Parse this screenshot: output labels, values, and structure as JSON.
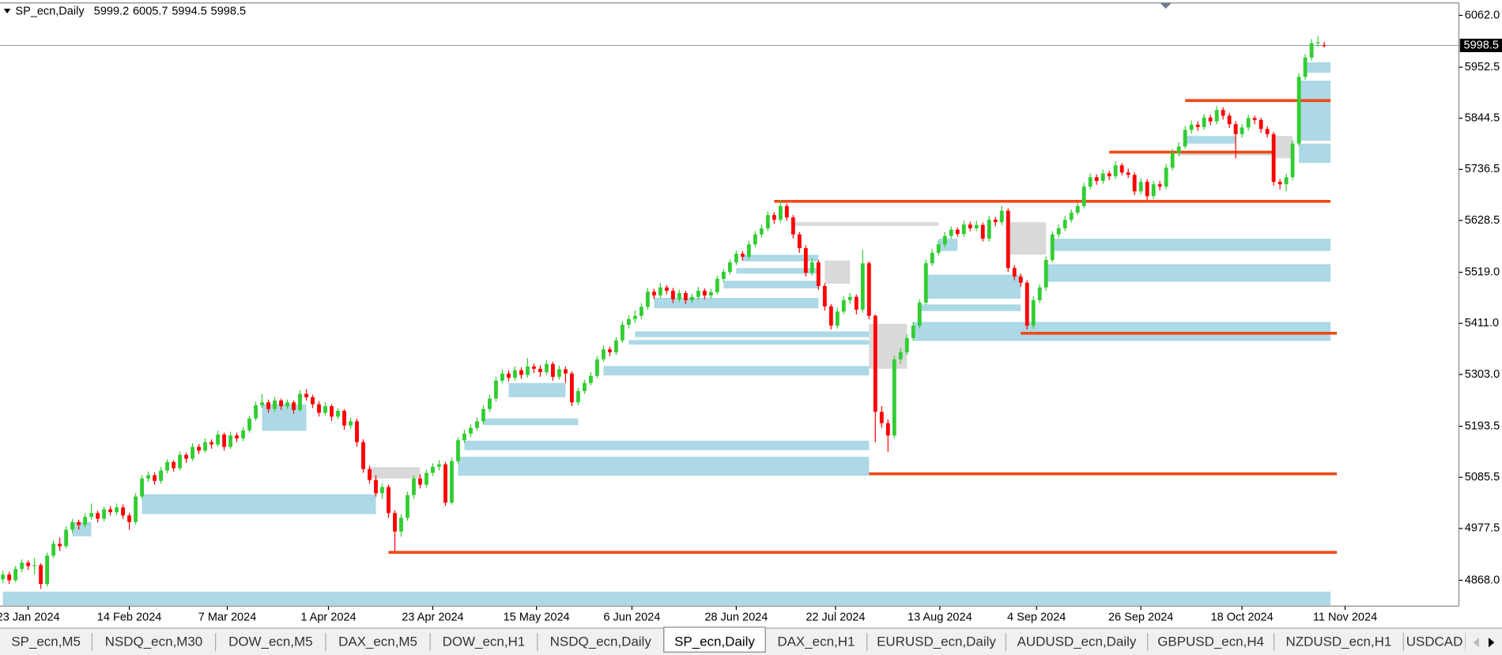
{
  "chart_data": {
    "type": "candlestick",
    "title": "SP_ecn,Daily",
    "up_color": "#32cd32",
    "down_color": "#ff0000",
    "zone_color": "#add8e6",
    "gap_color": "#d9d9d9",
    "level_color": "#f04a16",
    "ylim": [
      4813.4,
      6088.3
    ],
    "yticks": [
      {
        "value": 6062,
        "label": "6062.0"
      },
      5952.5,
      5844.5,
      5736.5,
      5628.5,
      {
        "value": 5519,
        "label": "5519.0"
      },
      {
        "value": 5411,
        "label": "5411.0"
      },
      {
        "value": 5303,
        "label": "5303.0"
      },
      5193.5,
      5085.5,
      4977.5,
      {
        "value": 4868,
        "label": "4868.0"
      }
    ],
    "xticks": [
      {
        "value": 4,
        "label": "23 Jan 2024"
      },
      {
        "value": 20,
        "label": "14 Feb 2024"
      },
      {
        "value": 35.5,
        "label": "7 Mar 2024"
      },
      {
        "value": 51.5,
        "label": "1 Apr 2024"
      },
      {
        "value": 68,
        "label": "23 Apr 2024"
      },
      {
        "value": 84.4,
        "label": "15 May 2024"
      },
      {
        "value": 99.5,
        "label": "6 Jun 2024"
      },
      {
        "value": 116,
        "label": "28 Jun 2024"
      },
      {
        "value": 131.7,
        "label": "22 Jul 2024"
      },
      {
        "value": 148.2,
        "label": "13 Aug 2024"
      },
      {
        "value": 163.5,
        "label": "4 Sep 2024"
      },
      {
        "value": 180,
        "label": "26 Sep 2024"
      },
      {
        "value": 196,
        "label": "18 Oct 2024"
      },
      {
        "value": 212.3,
        "label": "11 Nov 2024"
      }
    ],
    "candles": [
      [
        4870,
        4888,
        4862,
        4880
      ],
      [
        4880,
        4886,
        4860,
        4868
      ],
      [
        4868,
        4898,
        4864,
        4892
      ],
      [
        4892,
        4912,
        4885,
        4905
      ],
      [
        4905,
        4910,
        4890,
        4898
      ],
      [
        4898,
        4915,
        4880,
        4900
      ],
      [
        4900,
        4904,
        4850,
        4860
      ],
      [
        4860,
        4926,
        4855,
        4920
      ],
      [
        4920,
        4952,
        4915,
        4945
      ],
      [
        4945,
        4958,
        4930,
        4940
      ],
      [
        4940,
        4982,
        4936,
        4975
      ],
      [
        4975,
        4998,
        4968,
        4991
      ],
      [
        4991,
        4996,
        4975,
        4985
      ],
      [
        4985,
        5010,
        4980,
        5002
      ],
      [
        5002,
        5030,
        4996,
        5010
      ],
      [
        5010,
        5015,
        4990,
        4998
      ],
      [
        4998,
        5024,
        4992,
        5018
      ],
      [
        5018,
        5025,
        5005,
        5012
      ],
      [
        5012,
        5030,
        5006,
        5022
      ],
      [
        5022,
        5028,
        4998,
        5005
      ],
      [
        5005,
        5010,
        4975,
        4991
      ],
      [
        4991,
        5052,
        4986,
        5045
      ],
      [
        5045,
        5090,
        5040,
        5083
      ],
      [
        5083,
        5098,
        5076,
        5090
      ],
      [
        5090,
        5096,
        5070,
        5078
      ],
      [
        5078,
        5108,
        5072,
        5100
      ],
      [
        5100,
        5124,
        5094,
        5118
      ],
      [
        5118,
        5122,
        5098,
        5105
      ],
      [
        5105,
        5140,
        5100,
        5133
      ],
      [
        5133,
        5138,
        5116,
        5125
      ],
      [
        5125,
        5158,
        5120,
        5150
      ],
      [
        5150,
        5156,
        5135,
        5142
      ],
      [
        5142,
        5168,
        5138,
        5160
      ],
      [
        5160,
        5166,
        5146,
        5155
      ],
      [
        5155,
        5184,
        5150,
        5176
      ],
      [
        5176,
        5180,
        5142,
        5150
      ],
      [
        5150,
        5182,
        5146,
        5174
      ],
      [
        5174,
        5180,
        5160,
        5168
      ],
      [
        5168,
        5192,
        5162,
        5185
      ],
      [
        5185,
        5216,
        5180,
        5210
      ],
      [
        5210,
        5246,
        5205,
        5238
      ],
      [
        5238,
        5262,
        5232,
        5244
      ],
      [
        5244,
        5250,
        5222,
        5230
      ],
      [
        5230,
        5256,
        5224,
        5248
      ],
      [
        5248,
        5252,
        5228,
        5236
      ],
      [
        5236,
        5250,
        5230,
        5244
      ],
      [
        5244,
        5248,
        5220,
        5228
      ],
      [
        5228,
        5270,
        5224,
        5262
      ],
      [
        5262,
        5272,
        5248,
        5255
      ],
      [
        5255,
        5260,
        5232,
        5240
      ],
      [
        5240,
        5246,
        5214,
        5222
      ],
      [
        5222,
        5244,
        5216,
        5236
      ],
      [
        5236,
        5240,
        5205,
        5214
      ],
      [
        5214,
        5232,
        5208,
        5226
      ],
      [
        5226,
        5230,
        5186,
        5195
      ],
      [
        5195,
        5212,
        5188,
        5204
      ],
      [
        5204,
        5210,
        5150,
        5160
      ],
      [
        5160,
        5166,
        5095,
        5103
      ],
      [
        5103,
        5110,
        5072,
        5080
      ],
      [
        5080,
        5090,
        5045,
        5052
      ],
      [
        5052,
        5072,
        5040,
        5065
      ],
      [
        5065,
        5070,
        5000,
        5010
      ],
      [
        5010,
        5016,
        4930,
        4971
      ],
      [
        4971,
        5008,
        4960,
        5000
      ],
      [
        5000,
        5055,
        4994,
        5048
      ],
      [
        5048,
        5090,
        5040,
        5083
      ],
      [
        5083,
        5092,
        5062,
        5070
      ],
      [
        5070,
        5102,
        5064,
        5095
      ],
      [
        5095,
        5115,
        5088,
        5108
      ],
      [
        5108,
        5122,
        5100,
        5113
      ],
      [
        5113,
        5118,
        5025,
        5032
      ],
      [
        5032,
        5128,
        5028,
        5120
      ],
      [
        5120,
        5170,
        5115,
        5164
      ],
      [
        5164,
        5186,
        5158,
        5178
      ],
      [
        5178,
        5198,
        5170,
        5190
      ],
      [
        5190,
        5212,
        5184,
        5204
      ],
      [
        5204,
        5238,
        5198,
        5230
      ],
      [
        5230,
        5260,
        5224,
        5252
      ],
      [
        5252,
        5298,
        5246,
        5290
      ],
      [
        5290,
        5314,
        5284,
        5305
      ],
      [
        5305,
        5312,
        5288,
        5296
      ],
      [
        5296,
        5320,
        5290,
        5312
      ],
      [
        5312,
        5318,
        5294,
        5302
      ],
      [
        5302,
        5338,
        5296,
        5320
      ],
      [
        5320,
        5326,
        5306,
        5315
      ],
      [
        5315,
        5322,
        5298,
        5308
      ],
      [
        5308,
        5334,
        5302,
        5325
      ],
      [
        5325,
        5330,
        5290,
        5298
      ],
      [
        5298,
        5322,
        5292,
        5314
      ],
      [
        5314,
        5320,
        5285,
        5305
      ],
      [
        5305,
        5310,
        5236,
        5244
      ],
      [
        5244,
        5275,
        5238,
        5268
      ],
      [
        5268,
        5292,
        5262,
        5285
      ],
      [
        5285,
        5308,
        5280,
        5300
      ],
      [
        5300,
        5342,
        5295,
        5335
      ],
      [
        5335,
        5364,
        5330,
        5356
      ],
      [
        5356,
        5362,
        5342,
        5350
      ],
      [
        5350,
        5382,
        5344,
        5375
      ],
      [
        5375,
        5416,
        5370,
        5408
      ],
      [
        5408,
        5428,
        5400,
        5420
      ],
      [
        5420,
        5438,
        5412,
        5427
      ],
      [
        5427,
        5454,
        5420,
        5446
      ],
      [
        5446,
        5486,
        5440,
        5478
      ],
      [
        5478,
        5484,
        5462,
        5470
      ],
      [
        5470,
        5496,
        5464,
        5487
      ],
      [
        5487,
        5492,
        5472,
        5480
      ],
      [
        5480,
        5486,
        5454,
        5462
      ],
      [
        5462,
        5482,
        5456,
        5475
      ],
      [
        5475,
        5480,
        5452,
        5460
      ],
      [
        5460,
        5474,
        5454,
        5467
      ],
      [
        5467,
        5488,
        5460,
        5480
      ],
      [
        5480,
        5485,
        5462,
        5470
      ],
      [
        5470,
        5484,
        5464,
        5477
      ],
      [
        5477,
        5512,
        5472,
        5505
      ],
      [
        5505,
        5526,
        5498,
        5520
      ],
      [
        5520,
        5546,
        5514,
        5540
      ],
      [
        5540,
        5565,
        5534,
        5558
      ],
      [
        5558,
        5564,
        5544,
        5552
      ],
      [
        5552,
        5585,
        5546,
        5578
      ],
      [
        5578,
        5606,
        5572,
        5599
      ],
      [
        5599,
        5620,
        5592,
        5612
      ],
      [
        5612,
        5648,
        5606,
        5640
      ],
      [
        5640,
        5646,
        5622,
        5630
      ],
      [
        5630,
        5672,
        5624,
        5659
      ],
      [
        5659,
        5664,
        5628,
        5635
      ],
      [
        5635,
        5640,
        5590,
        5599
      ],
      [
        5599,
        5604,
        5560,
        5570
      ],
      [
        5570,
        5576,
        5510,
        5518
      ],
      [
        5518,
        5548,
        5512,
        5540
      ],
      [
        5540,
        5545,
        5482,
        5490
      ],
      [
        5490,
        5496,
        5438,
        5447
      ],
      [
        5447,
        5452,
        5398,
        5406
      ],
      [
        5406,
        5444,
        5400,
        5436
      ],
      [
        5436,
        5468,
        5430,
        5460
      ],
      [
        5460,
        5475,
        5452,
        5467
      ],
      [
        5467,
        5472,
        5430,
        5440
      ],
      [
        5440,
        5566,
        5434,
        5538
      ],
      [
        5538,
        5542,
        5420,
        5427
      ],
      [
        5427,
        5430,
        5160,
        5224
      ],
      [
        5224,
        5236,
        5190,
        5200
      ],
      [
        5200,
        5208,
        5140,
        5174
      ],
      [
        5174,
        5342,
        5168,
        5335
      ],
      [
        5335,
        5358,
        5326,
        5350
      ],
      [
        5350,
        5388,
        5344,
        5380
      ],
      [
        5380,
        5414,
        5374,
        5406
      ],
      [
        5406,
        5462,
        5400,
        5455
      ],
      [
        5455,
        5546,
        5450,
        5538
      ],
      [
        5538,
        5568,
        5532,
        5560
      ],
      [
        5560,
        5586,
        5554,
        5578
      ],
      [
        5578,
        5604,
        5572,
        5596
      ],
      [
        5596,
        5616,
        5590,
        5609
      ],
      [
        5609,
        5614,
        5594,
        5600
      ],
      [
        5600,
        5628,
        5594,
        5620
      ],
      [
        5620,
        5626,
        5606,
        5612
      ],
      [
        5612,
        5628,
        5606,
        5619
      ],
      [
        5619,
        5624,
        5584,
        5590
      ],
      [
        5590,
        5638,
        5584,
        5630
      ],
      [
        5630,
        5636,
        5616,
        5625
      ],
      [
        5625,
        5660,
        5618,
        5649
      ],
      [
        5649,
        5654,
        5520,
        5528
      ],
      [
        5528,
        5534,
        5502,
        5510
      ],
      [
        5510,
        5516,
        5488,
        5497
      ],
      [
        5497,
        5502,
        5398,
        5406
      ],
      [
        5406,
        5468,
        5400,
        5460
      ],
      [
        5460,
        5494,
        5454,
        5487
      ],
      [
        5487,
        5552,
        5480,
        5545
      ],
      [
        5545,
        5606,
        5540,
        5599
      ],
      [
        5599,
        5620,
        5592,
        5612
      ],
      [
        5612,
        5638,
        5606,
        5630
      ],
      [
        5630,
        5652,
        5624,
        5645
      ],
      [
        5645,
        5666,
        5640,
        5659
      ],
      [
        5659,
        5708,
        5654,
        5700
      ],
      [
        5700,
        5728,
        5694,
        5720
      ],
      [
        5720,
        5726,
        5704,
        5712
      ],
      [
        5712,
        5736,
        5706,
        5728
      ],
      [
        5728,
        5734,
        5714,
        5722
      ],
      [
        5722,
        5754,
        5716,
        5745
      ],
      [
        5745,
        5750,
        5724,
        5730
      ],
      [
        5730,
        5738,
        5718,
        5725
      ],
      [
        5725,
        5730,
        5682,
        5690
      ],
      [
        5690,
        5718,
        5684,
        5710
      ],
      [
        5710,
        5716,
        5672,
        5680
      ],
      [
        5680,
        5712,
        5674,
        5705
      ],
      [
        5705,
        5712,
        5692,
        5700
      ],
      [
        5700,
        5748,
        5694,
        5740
      ],
      [
        5740,
        5780,
        5734,
        5771
      ],
      [
        5771,
        5794,
        5764,
        5785
      ],
      [
        5785,
        5828,
        5780,
        5820
      ],
      [
        5820,
        5840,
        5812,
        5831
      ],
      [
        5831,
        5838,
        5818,
        5826
      ],
      [
        5826,
        5854,
        5820,
        5846
      ],
      [
        5846,
        5852,
        5830,
        5838
      ],
      [
        5838,
        5870,
        5832,
        5862
      ],
      [
        5862,
        5868,
        5842,
        5850
      ],
      [
        5850,
        5856,
        5824,
        5832
      ],
      [
        5832,
        5838,
        5760,
        5811
      ],
      [
        5811,
        5832,
        5804,
        5825
      ],
      [
        5825,
        5852,
        5818,
        5845
      ],
      [
        5845,
        5850,
        5832,
        5841
      ],
      [
        5841,
        5846,
        5814,
        5822
      ],
      [
        5822,
        5828,
        5804,
        5811
      ],
      [
        5811,
        5816,
        5702,
        5710
      ],
      [
        5710,
        5716,
        5694,
        5705
      ],
      [
        5705,
        5728,
        5690,
        5720
      ],
      [
        5720,
        5798,
        5714,
        5791
      ],
      [
        5791,
        5940,
        5786,
        5932
      ],
      [
        5932,
        5980,
        5926,
        5973
      ],
      [
        5973,
        6012,
        5966,
        6003
      ],
      [
        6003,
        6018,
        5996,
        6005
      ],
      [
        5999.2,
        6005.7,
        5994.5,
        5998.5
      ]
    ],
    "zones": [
      [
        0,
        210,
        4844,
        4815
      ],
      [
        22,
        59,
        5050,
        5008
      ],
      [
        11,
        14,
        4991,
        4961
      ],
      [
        41,
        48,
        5240,
        5184
      ],
      [
        72,
        137,
        5129,
        5089
      ],
      [
        73,
        137,
        5163,
        5143
      ],
      [
        76,
        91,
        5210,
        5196
      ],
      [
        80,
        89,
        5285,
        5255
      ],
      [
        95,
        137,
        5321,
        5301
      ],
      [
        99,
        137,
        5376,
        5366
      ],
      [
        100,
        137,
        5394,
        5382
      ],
      [
        103,
        129,
        5465,
        5443
      ],
      [
        114,
        129,
        5501,
        5485
      ],
      [
        116,
        129,
        5528,
        5516
      ],
      [
        117,
        129,
        5556,
        5542
      ],
      [
        144,
        210,
        5414,
        5374
      ],
      [
        145,
        161,
        5451,
        5437
      ],
      [
        146,
        161,
        5514,
        5463
      ],
      [
        165,
        210,
        5536,
        5499
      ],
      [
        166,
        210,
        5590,
        5564
      ],
      [
        148,
        151,
        5590,
        5564
      ],
      [
        205,
        210,
        5791,
        5750
      ],
      [
        205,
        210,
        5924,
        5797
      ],
      [
        206,
        210,
        5963,
        5941
      ],
      [
        187,
        195,
        5807,
        5791
      ]
    ],
    "gaps": [
      [
        58,
        66,
        5107,
        5083
      ],
      [
        130,
        134,
        5544,
        5495
      ],
      [
        137,
        143,
        5410,
        5315
      ],
      [
        159,
        165,
        5625,
        5556
      ],
      [
        125,
        148,
        5625,
        5617
      ],
      [
        201,
        204,
        5807,
        5760
      ],
      [
        186,
        201,
        5774,
        5766
      ]
    ],
    "levels": [
      [
        61,
        211,
        4927
      ],
      [
        137,
        211,
        5093
      ],
      [
        161,
        211,
        5390
      ],
      [
        122,
        210,
        5669
      ],
      [
        175,
        201,
        5773
      ],
      [
        187,
        210,
        5882
      ]
    ]
  },
  "tabs": [
    "SP_ecn,M5",
    "NSDQ_ecn,M30",
    "DOW_ecn,M5",
    "DAX_ecn,M5",
    "DOW_ecn,H1",
    "NSDQ_ecn,Daily",
    "SP_ecn,Daily",
    "DAX_ecn,H1",
    "EURUSD_ecn,Daily",
    "AUDUSD_ecn,Daily",
    "GBPUSD_ecn,H4",
    "NZDUSD_ecn,H1",
    "USDCAD"
  ],
  "active_tab": 6
}
